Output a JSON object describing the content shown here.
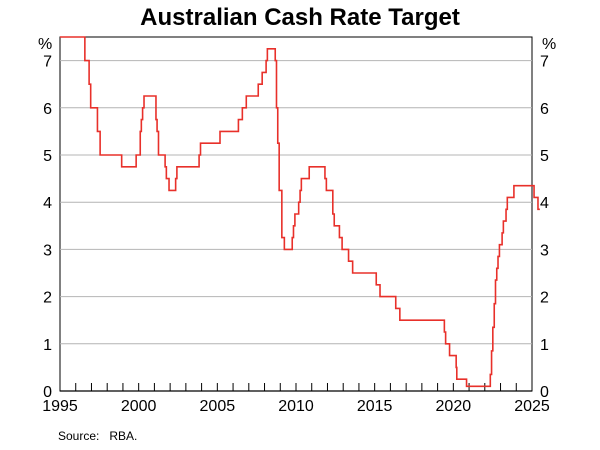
{
  "chart_data": {
    "type": "line",
    "title": "Australian Cash Rate Target",
    "ylabel_left": "%",
    "ylabel_right": "%",
    "source": "Source:   RBA.",
    "xlim": [
      1995,
      2025
    ],
    "ylim": [
      0,
      7.5
    ],
    "xticks": [
      1995,
      2000,
      2005,
      2010,
      2015,
      2020,
      2025
    ],
    "yticks": [
      0,
      1,
      2,
      3,
      4,
      5,
      6,
      7
    ],
    "grid": true,
    "line_color": "#e8302a",
    "series": [
      {
        "step": true,
        "x": [
          1995.0,
          1996.58,
          1996.85,
          1996.95,
          1997.38,
          1997.55,
          1998.92,
          1999.84,
          2000.1,
          2000.17,
          2000.25,
          2000.34,
          2000.6,
          2001.1,
          2001.17,
          2001.26,
          2001.68,
          2001.76,
          2001.93,
          2002.35,
          2002.43,
          2003.84,
          2003.93,
          2005.17,
          2006.34,
          2006.59,
          2006.84,
          2007.6,
          2007.85,
          2008.1,
          2008.18,
          2008.68,
          2008.76,
          2008.84,
          2008.93,
          2009.1,
          2009.26,
          2009.76,
          2009.84,
          2009.93,
          2010.17,
          2010.26,
          2010.34,
          2010.84,
          2011.84,
          2011.93,
          2012.34,
          2012.43,
          2012.76,
          2012.93,
          2013.34,
          2013.6,
          2015.1,
          2015.34,
          2016.34,
          2016.6,
          2019.43,
          2019.51,
          2019.76,
          2020.18,
          2020.22,
          2020.84,
          2022.35,
          2022.43,
          2022.51,
          2022.6,
          2022.68,
          2022.76,
          2022.84,
          2022.93,
          2023.1,
          2023.18,
          2023.35,
          2023.43,
          2023.85,
          2025.13,
          2025.38,
          2025.5
        ],
        "y": [
          7.5,
          7.0,
          6.5,
          6.0,
          5.5,
          5.0,
          4.75,
          5.0,
          5.5,
          5.75,
          6.0,
          6.25,
          6.25,
          5.75,
          5.5,
          5.0,
          4.75,
          4.5,
          4.25,
          4.5,
          4.75,
          5.0,
          5.25,
          5.5,
          5.75,
          6.0,
          6.25,
          6.5,
          6.75,
          7.0,
          7.25,
          7.0,
          6.0,
          5.25,
          4.25,
          3.25,
          3.0,
          3.25,
          3.5,
          3.75,
          4.0,
          4.25,
          4.5,
          4.75,
          4.5,
          4.25,
          3.75,
          3.5,
          3.25,
          3.0,
          2.75,
          2.5,
          2.25,
          2.0,
          1.75,
          1.5,
          1.25,
          1.0,
          0.75,
          0.5,
          0.25,
          0.1,
          0.35,
          0.85,
          1.35,
          1.85,
          2.35,
          2.6,
          2.85,
          3.1,
          3.35,
          3.6,
          3.85,
          4.1,
          4.35,
          4.1,
          3.85,
          3.85
        ]
      }
    ]
  }
}
